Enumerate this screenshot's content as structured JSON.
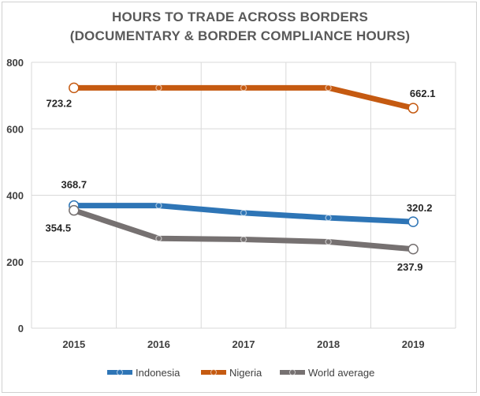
{
  "chart_data": {
    "type": "line",
    "title": "HOURS TO TRADE ACROSS BORDERS",
    "subtitle": "(DOCUMENTARY & BORDER COMPLIANCE HOURS)",
    "categories": [
      "2015",
      "2016",
      "2017",
      "2018",
      "2019"
    ],
    "ylim": [
      0,
      800
    ],
    "yticks": [
      0,
      200,
      400,
      600,
      800
    ],
    "grid": true,
    "legend_position": "bottom",
    "series": [
      {
        "name": "Indonesia",
        "color": "#2E75B6",
        "values": [
          368.7,
          368.7,
          347,
          332,
          320.2
        ],
        "labels": [
          "368.7",
          null,
          null,
          null,
          "320.2"
        ]
      },
      {
        "name": "Nigeria",
        "color": "#C55A11",
        "values": [
          723.2,
          723.2,
          723.2,
          723.2,
          662.1
        ],
        "labels": [
          "723.2",
          null,
          null,
          null,
          "662.1"
        ]
      },
      {
        "name": "World average",
        "color": "#767171",
        "values": [
          354.5,
          270,
          267,
          260,
          237.9
        ],
        "labels": [
          "354.5",
          null,
          null,
          null,
          "237.9"
        ]
      }
    ]
  }
}
